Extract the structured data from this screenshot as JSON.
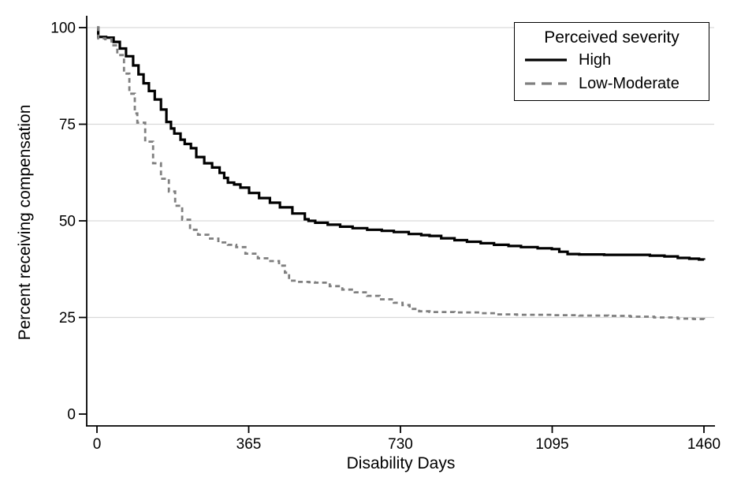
{
  "chart_data": {
    "type": "line",
    "subtype": "kaplan-meier-step",
    "title": "",
    "xlabel": "Disability Days",
    "ylabel": "Percent receiving compensation",
    "xlim": [
      0,
      1460
    ],
    "ylim": [
      0,
      100
    ],
    "xticks": [
      0,
      365,
      730,
      1095,
      1460
    ],
    "yticks": [
      0,
      25,
      50,
      75,
      100
    ],
    "grid_yticks": [
      25,
      50,
      75,
      100
    ],
    "grid_color": "#d9d9d9",
    "axis_color": "#000000",
    "legend_position": "top-right",
    "series": [
      {
        "name": "High",
        "color": "#000000",
        "dash": "solid",
        "width": 3.2,
        "points": [
          [
            0,
            100
          ],
          [
            3,
            97.6
          ],
          [
            22,
            97.4
          ],
          [
            40,
            96.3
          ],
          [
            55,
            94.6
          ],
          [
            70,
            92.6
          ],
          [
            87,
            90.2
          ],
          [
            100,
            87.9
          ],
          [
            112,
            85.6
          ],
          [
            125,
            83.6
          ],
          [
            139,
            81.4
          ],
          [
            154,
            78.8
          ],
          [
            167,
            75.6
          ],
          [
            178,
            73.9
          ],
          [
            186,
            72.6
          ],
          [
            201,
            71.0
          ],
          [
            211,
            69.9
          ],
          [
            226,
            68.8
          ],
          [
            239,
            66.5
          ],
          [
            258,
            64.9
          ],
          [
            277,
            63.8
          ],
          [
            295,
            62.4
          ],
          [
            306,
            61.1
          ],
          [
            315,
            59.9
          ],
          [
            330,
            59.4
          ],
          [
            345,
            58.6
          ],
          [
            366,
            57.2
          ],
          [
            390,
            55.9
          ],
          [
            416,
            54.7
          ],
          [
            440,
            53.5
          ],
          [
            470,
            51.9
          ],
          [
            500,
            50.4
          ],
          [
            509,
            50.0
          ],
          [
            525,
            49.5
          ],
          [
            555,
            49.0
          ],
          [
            585,
            48.5
          ],
          [
            615,
            48.1
          ],
          [
            650,
            47.7
          ],
          [
            685,
            47.4
          ],
          [
            714,
            47.1
          ],
          [
            750,
            46.6
          ],
          [
            780,
            46.3
          ],
          [
            800,
            46.1
          ],
          [
            828,
            45.5
          ],
          [
            860,
            45.0
          ],
          [
            890,
            44.6
          ],
          [
            923,
            44.2
          ],
          [
            955,
            43.8
          ],
          [
            990,
            43.5
          ],
          [
            1020,
            43.2
          ],
          [
            1060,
            42.9
          ],
          [
            1094,
            42.7
          ],
          [
            1112,
            42.0
          ],
          [
            1132,
            41.4
          ],
          [
            1160,
            41.3
          ],
          [
            1220,
            41.2
          ],
          [
            1290,
            41.2
          ],
          [
            1330,
            41.0
          ],
          [
            1365,
            40.8
          ],
          [
            1397,
            40.4
          ],
          [
            1425,
            40.2
          ],
          [
            1448,
            40.0
          ],
          [
            1460,
            39.9
          ]
        ]
      },
      {
        "name": "Low-Moderate",
        "color": "#7f7f7f",
        "dash": "dashed",
        "width": 2.8,
        "points": [
          [
            0,
            100
          ],
          [
            3,
            97.2
          ],
          [
            20,
            97.0
          ],
          [
            35,
            95.4
          ],
          [
            49,
            92.9
          ],
          [
            65,
            88.1
          ],
          [
            78,
            82.9
          ],
          [
            91,
            77.8
          ],
          [
            97,
            75.4
          ],
          [
            116,
            70.5
          ],
          [
            135,
            64.9
          ],
          [
            154,
            60.9
          ],
          [
            173,
            57.6
          ],
          [
            188,
            53.9
          ],
          [
            205,
            50.3
          ],
          [
            224,
            47.7
          ],
          [
            243,
            46.4
          ],
          [
            268,
            45.4
          ],
          [
            292,
            44.4
          ],
          [
            315,
            43.8
          ],
          [
            335,
            43.2
          ],
          [
            357,
            41.5
          ],
          [
            387,
            40.3
          ],
          [
            414,
            39.6
          ],
          [
            438,
            38.4
          ],
          [
            452,
            36.6
          ],
          [
            462,
            34.5
          ],
          [
            480,
            34.2
          ],
          [
            510,
            34.1
          ],
          [
            524,
            34.0
          ],
          [
            560,
            33.1
          ],
          [
            590,
            32.2
          ],
          [
            620,
            31.5
          ],
          [
            650,
            30.6
          ],
          [
            680,
            29.7
          ],
          [
            714,
            28.8
          ],
          [
            735,
            28.2
          ],
          [
            752,
            27.2
          ],
          [
            775,
            26.6
          ],
          [
            800,
            26.4
          ],
          [
            860,
            26.3
          ],
          [
            920,
            26.1
          ],
          [
            960,
            25.8
          ],
          [
            1010,
            25.7
          ],
          [
            1094,
            25.6
          ],
          [
            1160,
            25.5
          ],
          [
            1230,
            25.4
          ],
          [
            1283,
            25.2
          ],
          [
            1340,
            25.0
          ],
          [
            1397,
            24.7
          ],
          [
            1435,
            24.6
          ],
          [
            1460,
            24.4
          ]
        ]
      }
    ]
  },
  "legend": {
    "title": "Perceived severity",
    "items": [
      {
        "label": "High",
        "color": "#000000",
        "dash": "solid"
      },
      {
        "label": "Low-Moderate",
        "color": "#7f7f7f",
        "dash": "dashed"
      }
    ]
  }
}
